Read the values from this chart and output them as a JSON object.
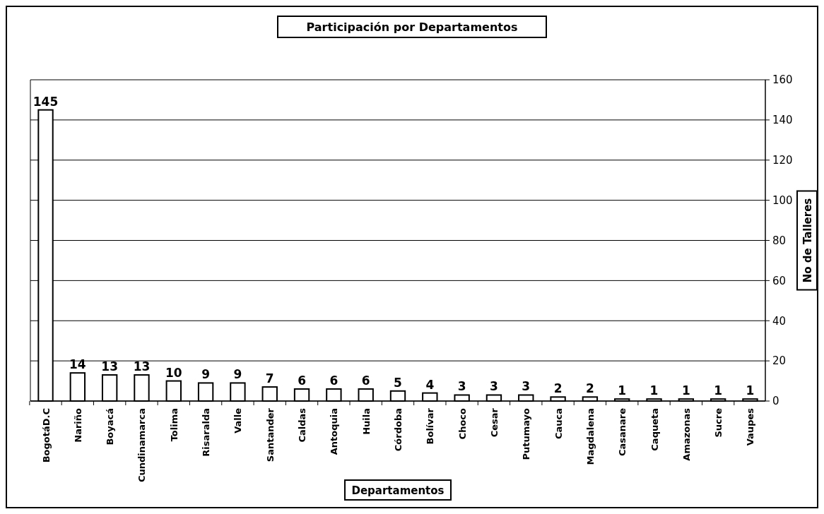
{
  "chart_data": {
    "type": "bar",
    "title": "Participación por Departamentos",
    "xlabel": "Departamentos",
    "ylabel": "No de Talleres",
    "categories": [
      "BogotáD.C",
      "Nariño",
      "Boyacá",
      "Cundinamarca",
      "Tolima",
      "Risaralda",
      "Valle",
      "Santander",
      "Caldas",
      "Antoquia",
      "Huila",
      "Córdoba",
      "Bolívar",
      "Choco",
      "Cesar",
      "Putumayo",
      "Cauca",
      "Magdalena",
      "Casanare",
      "Caqueta",
      "Amazonas",
      "Sucre",
      "Vaupes"
    ],
    "values": [
      145,
      14,
      13,
      13,
      10,
      9,
      9,
      7,
      6,
      6,
      6,
      5,
      4,
      3,
      3,
      3,
      2,
      2,
      1,
      1,
      1,
      1,
      1
    ],
    "color": "#ffffff",
    "ylim": [
      0,
      160
    ],
    "yticks": [
      0,
      20,
      40,
      60,
      80,
      100,
      120,
      140,
      160
    ],
    "grid": "y",
    "data_labels": true
  }
}
